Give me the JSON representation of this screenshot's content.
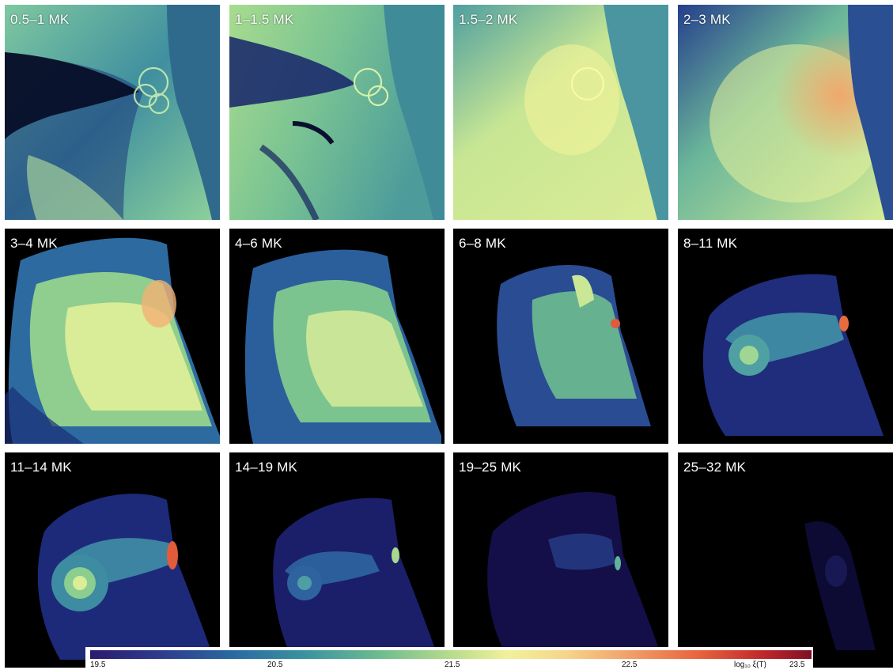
{
  "panels": [
    {
      "label": "0.5–1 MK"
    },
    {
      "label": "1–1.5 MK"
    },
    {
      "label": "1.5–2 MK"
    },
    {
      "label": "2–3 MK"
    },
    {
      "label": "3–4 MK"
    },
    {
      "label": "4–6 MK"
    },
    {
      "label": "6–8 MK"
    },
    {
      "label": "8–11 MK"
    },
    {
      "label": "11–14 MK"
    },
    {
      "label": "14–19 MK"
    },
    {
      "label": "19–25 MK"
    },
    {
      "label": "25–32 MK"
    }
  ],
  "colorbar": {
    "ticks": [
      "19.5",
      "20.5",
      "21.5",
      "22.5",
      "23.5"
    ],
    "title": "log₁₀ ξ(T)",
    "colors": [
      "#2b1b6e",
      "#2a6aa1",
      "#6dbb8f",
      "#f2f19a",
      "#e8663f",
      "#800f26"
    ]
  }
}
